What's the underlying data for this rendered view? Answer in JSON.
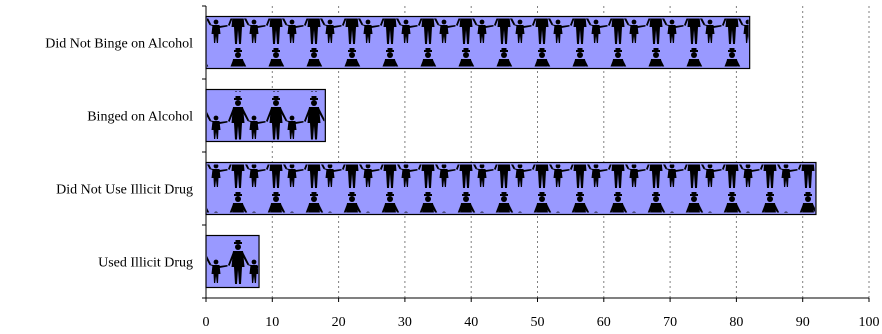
{
  "chart_data": {
    "type": "bar",
    "orientation": "horizontal",
    "categories": [
      "Did Not Binge on Alcohol",
      "Binged on Alcohol",
      "Did Not Use Illicit Drug",
      "Used Illicit Drug"
    ],
    "values": [
      82,
      18,
      92,
      8
    ],
    "xlim": [
      0,
      100
    ],
    "x_ticks": [
      0,
      10,
      20,
      30,
      40,
      50,
      60,
      70,
      80,
      90,
      100
    ],
    "grid": "vertical dashed",
    "bar_color": "#9999ff",
    "bar_fill": "people pictograph",
    "title": "",
    "xlabel": "",
    "ylabel": ""
  }
}
